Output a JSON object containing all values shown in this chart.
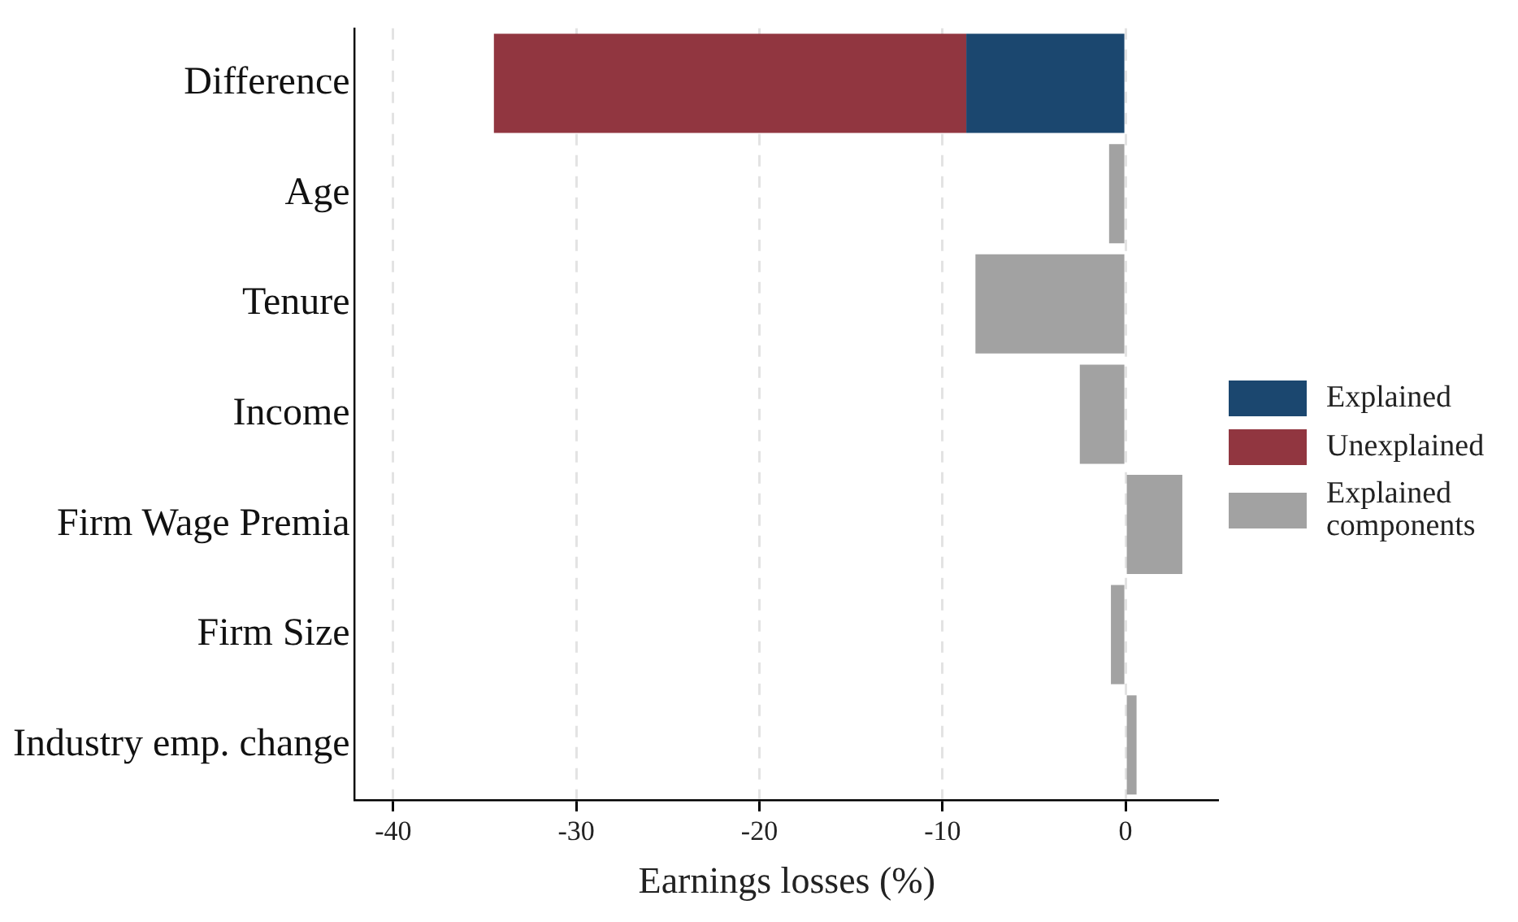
{
  "chart_data": {
    "type": "bar",
    "orientation": "horizontal",
    "stacked": true,
    "xlabel": "Earnings losses (%)",
    "categories": [
      "Difference",
      "Age",
      "Tenure",
      "Income",
      "Firm Wage Premia",
      "Firm Size",
      "Industry emp. change"
    ],
    "series": [
      {
        "name": "Explained",
        "color": "#1b476f",
        "values": [
          -8.7,
          null,
          null,
          null,
          null,
          null,
          null
        ]
      },
      {
        "name": "Unexplained",
        "color": "#913640",
        "values": [
          -25.8,
          null,
          null,
          null,
          null,
          null,
          null
        ]
      },
      {
        "name": "Explained components",
        "color": "#a2a2a2",
        "values": [
          null,
          -0.9,
          -8.2,
          -2.5,
          3.1,
          -0.8,
          0.6
        ]
      }
    ],
    "xlim": [
      -42.1,
      5.1
    ],
    "xticks": [
      -40,
      -30,
      -20,
      -10,
      0
    ],
    "grid": "x",
    "legend": "right"
  }
}
